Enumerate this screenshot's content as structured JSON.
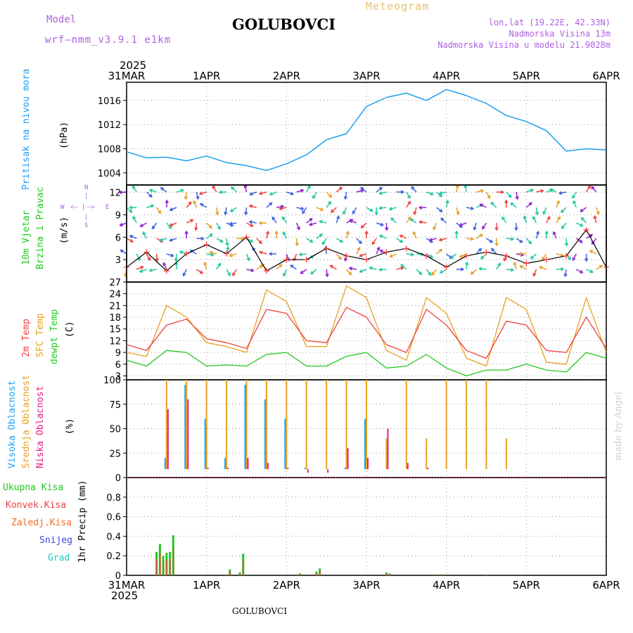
{
  "header": {
    "model_label": "Model",
    "model_value": "wrf–nmm_v3.9.1 e1km",
    "title": "GOLUBOVCI",
    "subtitle": "Meteogram",
    "coords": "lon,lat (19.22E, 42.33N)",
    "elevation": "Nadmorska Visina 13m",
    "model_elevation": "Nadmorska Visina u modelu 21.9028m",
    "year_top": "2025",
    "year_bottom": "2025",
    "footer_title": "GOLUBOVCI",
    "credit": "made by Angel"
  },
  "colors": {
    "pressure": "#1ea0f0",
    "temp2m": "#f04040",
    "sfc": "#e6a020",
    "dewpt": "#20c820",
    "wind_speed_black": "#000000",
    "wind_speed_red": "#f04040",
    "cloud_high": "#1ea0f0",
    "cloud_mid": "#e6a020",
    "cloud_low": "#e02080",
    "precip_total": "#20c820",
    "precip_conv": "#f04040",
    "precip_strat": "#f07020",
    "snow": "#4040e0",
    "grad": "#20c8c8",
    "label_purple": "#b060e0"
  },
  "panel_labels": {
    "pressure": {
      "name": "Pritisak na nivou mora",
      "unit": "(hPa)"
    },
    "wind": {
      "name1": "10m Vjetar",
      "name2": "Brzina i Pravac",
      "unit": "(m/s)",
      "compass_n": "N",
      "compass_s": "S",
      "compass_w": "W",
      "compass_e": "E"
    },
    "temp": {
      "name1": "2m Temp",
      "name2": "SFC Temp",
      "name3": "dewpt Temp",
      "unit": "(C)"
    },
    "cloud": {
      "name1": "Visoka Oblacnost",
      "name2": "Srednja Oblacnost",
      "name3": "Niska Oblacnost",
      "unit": "(%)"
    },
    "precip": {
      "total": "Ukupna Kisa",
      "conv": "Konvek.Kisa",
      "strat": "Zaledj.Kisa",
      "snow": "Snijeg",
      "grad": "Grad",
      "unit": "1hr Precip (mm)"
    }
  },
  "chart_data": [
    {
      "type": "line",
      "panel": "pressure",
      "x_ticks": [
        "31MAR",
        "1APR",
        "2APR",
        "3APR",
        "4APR",
        "5APR",
        "6APR"
      ],
      "x_hours": [
        0,
        6,
        12,
        18,
        24,
        30,
        36,
        42,
        48,
        54,
        60,
        66,
        72,
        78,
        84,
        90,
        96,
        102,
        108,
        114,
        120,
        126,
        132,
        138,
        144
      ],
      "ylim": [
        1002,
        1019
      ],
      "y_ticks": [
        "1004",
        "1008",
        "1012",
        "1016"
      ],
      "series": [
        {
          "values": [
            1007.5,
            1006.5,
            1006.6,
            1006,
            1006.8,
            1005.7,
            1005.2,
            1004.4,
            1005.5,
            1007,
            1009.5,
            1010.5,
            1015,
            1016.5,
            1017.2,
            1016,
            1017.8,
            1016.8,
            1015.5,
            1013.5,
            1012.5,
            1011,
            1007.6,
            1008,
            1007.8
          ]
        }
      ]
    },
    {
      "type": "line",
      "panel": "wind",
      "x_hours": [
        0,
        6,
        12,
        18,
        24,
        30,
        36,
        42,
        48,
        54,
        60,
        66,
        72,
        78,
        84,
        90,
        96,
        102,
        108,
        114,
        120,
        126,
        132,
        138,
        144
      ],
      "ylim": [
        0,
        13
      ],
      "y_ticks": [
        "3",
        "6",
        "9",
        "12"
      ],
      "series": [
        {
          "values": [
            2,
            4,
            1.5,
            3.8,
            5,
            3.8,
            6,
            1.5,
            3,
            3,
            4.5,
            3.5,
            3,
            4,
            4.5,
            3.5,
            2,
            3.5,
            4,
            3.5,
            2.5,
            3,
            3.5,
            7,
            2
          ]
        }
      ]
    },
    {
      "type": "line",
      "panel": "temperature",
      "x_hours": [
        0,
        6,
        12,
        18,
        24,
        30,
        36,
        42,
        48,
        54,
        60,
        66,
        72,
        78,
        84,
        90,
        96,
        102,
        108,
        114,
        120,
        126,
        132,
        138,
        144
      ],
      "ylim": [
        2,
        27
      ],
      "y_ticks": [
        "3",
        "6",
        "9",
        "12",
        "15",
        "18",
        "21",
        "24",
        "27"
      ],
      "series": [
        {
          "values": [
            11,
            9.5,
            16,
            17.5,
            12.5,
            11.5,
            10,
            20,
            19,
            12,
            11.5,
            20.5,
            18,
            11,
            9,
            20,
            16,
            9.5,
            7.5,
            17,
            16,
            9.5,
            9,
            18,
            10
          ]
        },
        {
          "values": [
            9,
            8,
            21,
            18,
            11.5,
            10.5,
            9,
            25,
            22,
            10.5,
            10.5,
            26,
            23,
            9.5,
            7,
            23,
            19,
            7.5,
            5.5,
            23,
            20,
            6.5,
            6,
            23,
            9
          ]
        },
        {
          "values": [
            7,
            5.5,
            9.5,
            9,
            5.5,
            5.8,
            5.5,
            8.5,
            9,
            5.5,
            5.5,
            8,
            9,
            5,
            5.5,
            8.5,
            5,
            3,
            4.5,
            4.5,
            6,
            4.5,
            4,
            9,
            7.5
          ]
        }
      ]
    },
    {
      "type": "bar",
      "panel": "cloud",
      "x_hours": [
        0,
        6,
        12,
        18,
        24,
        30,
        36,
        42,
        48,
        54,
        60,
        66,
        72,
        78,
        84,
        90,
        96,
        102,
        108,
        114,
        120,
        126,
        132,
        138,
        144
      ],
      "ylim": [
        0,
        100
      ],
      "y_ticks": [
        "0",
        "25",
        "50",
        "75",
        "100"
      ],
      "series": [
        {
          "values": [
            0,
            0,
            20,
            95,
            60,
            20,
            95,
            80,
            60,
            10,
            0,
            10,
            60,
            0,
            0,
            0,
            0,
            0,
            0,
            0,
            0,
            0,
            0,
            0,
            0
          ]
        },
        {
          "values": [
            0,
            0,
            100,
            100,
            100,
            100,
            100,
            100,
            100,
            100,
            100,
            100,
            100,
            40,
            100,
            40,
            100,
            100,
            100,
            40,
            0,
            0,
            0,
            0,
            0
          ]
        },
        {
          "values": [
            0,
            0,
            70,
            80,
            10,
            10,
            20,
            15,
            10,
            5,
            5,
            30,
            20,
            50,
            15,
            10,
            0,
            0,
            0,
            0,
            0,
            0,
            0,
            0,
            0
          ]
        }
      ]
    },
    {
      "type": "bar",
      "panel": "precip",
      "x_hours": [
        9,
        10,
        11,
        12,
        13,
        14,
        30,
        31,
        34,
        35,
        51,
        52,
        57,
        58,
        78,
        79,
        94,
        95,
        108
      ],
      "ylim": [
        0,
        1
      ],
      "y_ticks": [
        "0",
        "0.2",
        "0.4",
        "0.6",
        "0.8"
      ],
      "series": [
        {
          "values": [
            0.24,
            0.32,
            0.2,
            0.23,
            0.24,
            0.41,
            0.01,
            0.06,
            0.03,
            0.22,
            0.01,
            0.02,
            0.04,
            0.07,
            0.03,
            0.02,
            0.01,
            0.01,
            0.01
          ]
        }
      ]
    }
  ]
}
